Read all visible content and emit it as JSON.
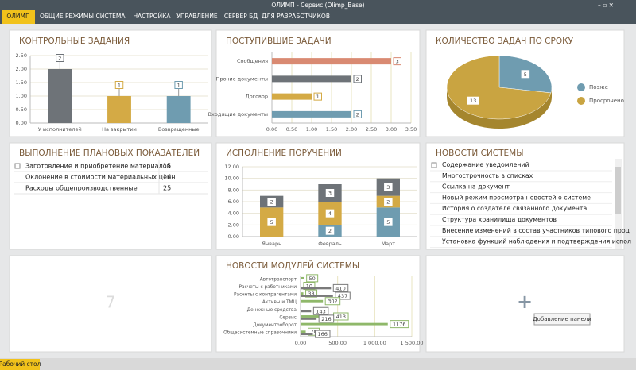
{
  "window": {
    "title": "ОЛИМП - Сервис (Olimp_Base)"
  },
  "menu": [
    "ОЛИМП",
    "ОБЩИЕ РЕЖИМЫ",
    "СИСТЕМА",
    "НАСТРОЙКА",
    "УПРАВЛЕНИЕ",
    "СЕРВЕР БД",
    "ДЛЯ РАЗРАБОТЧИКОВ"
  ],
  "status_bar": {
    "tab": "Рабочий стол"
  },
  "chart_data": [
    {
      "type": "bar",
      "title": "КОНТРОЛЬНЫЕ ЗАДАНИЯ",
      "categories": [
        "У исполнителей",
        "На закрытии",
        "Возвращенные"
      ],
      "values": [
        2,
        1,
        1
      ],
      "colors": [
        "#6e7378",
        "#d4aa45",
        "#6f9cb0"
      ],
      "ylim": [
        0,
        2.5
      ],
      "yticks": [
        {
          "value": 0,
          "label": "0.00"
        },
        {
          "value": 0.5,
          "label": "0.50"
        },
        {
          "value": 1,
          "label": "1.00"
        },
        {
          "value": 1.5,
          "label": "1.50"
        },
        {
          "value": 2,
          "label": "2.00"
        },
        {
          "value": 2.5,
          "label": "2.50"
        }
      ],
      "grid": true
    },
    {
      "type": "barh",
      "title": "ПОСТУПИВШИЕ ЗАДАЧИ",
      "categories": [
        "Сообщения",
        "Прочие документы",
        "Договор",
        "Входящие документы"
      ],
      "values": [
        3,
        2,
        1,
        2
      ],
      "colors": [
        "#d98a72",
        "#6e7378",
        "#d4aa45",
        "#6f9cb0"
      ],
      "xlim": [
        0,
        3.5
      ],
      "xticks": [
        {
          "value": 0,
          "label": "0.00"
        },
        {
          "value": 0.5,
          "label": "0.50"
        },
        {
          "value": 1,
          "label": "1.00"
        },
        {
          "value": 1.5,
          "label": "1.50"
        },
        {
          "value": 2,
          "label": "2.00"
        },
        {
          "value": 2.5,
          "label": "2.50"
        },
        {
          "value": 3,
          "label": "3.00"
        },
        {
          "value": 3.5,
          "label": "3.50"
        }
      ],
      "grid": true
    },
    {
      "type": "pie",
      "title": "КОЛИЧЕСТВО ЗАДАЧ ПО СРОКУ",
      "categories": [
        "Позже",
        "Просрочено"
      ],
      "values": [
        5,
        13
      ],
      "colors": [
        "#6f9cb0",
        "#c9a441"
      ],
      "legend": "right"
    },
    {
      "type": "stacked_bar",
      "title": "ИСПОЛНЕНИЕ ПОРУЧЕНИЙ",
      "categories": [
        "Январь",
        "Февраль",
        "Март"
      ],
      "series": [
        {
          "color": "#6f9cb0",
          "values": [
            0,
            2,
            5
          ]
        },
        {
          "color": "#d4aa45",
          "values": [
            5,
            4,
            2
          ]
        },
        {
          "color": "#6e7378",
          "values": [
            2,
            3,
            3
          ]
        }
      ],
      "ylim": [
        0,
        12
      ],
      "yticks": [
        {
          "value": 0,
          "label": "0.00"
        },
        {
          "value": 2,
          "label": "2.00"
        },
        {
          "value": 4,
          "label": "4.00"
        },
        {
          "value": 6,
          "label": "6.00"
        },
        {
          "value": 8,
          "label": "8.00"
        },
        {
          "value": 10,
          "label": "10.00"
        },
        {
          "value": 12,
          "label": "12.00"
        }
      ],
      "grid": true
    },
    {
      "type": "barh",
      "title": "НОВОСТИ МОДУЛЕЙ СИСТЕМЫ",
      "categories": [
        "Автотранспорт",
        "Расчеты с работниками",
        "Расчеты с контрагентами",
        "Активы и ТМЦ",
        "Денежные средства",
        "Сервис",
        "Документооборот",
        "Общесистемные справочники"
      ],
      "series": [
        {
          "color": "#8fb86a",
          "values": [
            50,
            10,
            38,
            302,
            null,
            413,
            1176,
            70
          ]
        },
        {
          "color": "#7a7a7a",
          "values": [
            null,
            410,
            437,
            null,
            143,
            216,
            null,
            166
          ]
        }
      ],
      "xlim": [
        0,
        1500
      ],
      "xticks": [
        {
          "value": 0,
          "label": "0.00"
        },
        {
          "value": 500,
          "label": "500.00"
        },
        {
          "value": 1000,
          "label": "1 000.00"
        },
        {
          "value": 1500,
          "label": "1 500.00"
        }
      ],
      "grid": true
    }
  ],
  "table": {
    "title": "ВЫПОЛНЕНИЕ ПЛАНОВЫХ ПОКАЗАТЕЛЕЙ",
    "rows": [
      [
        "Заготовление и приобретение материалов",
        15
      ],
      [
        "Оклонение в стоимости материальных ценн",
        16
      ],
      [
        "Расходы общепроизводственные",
        25
      ]
    ]
  },
  "news": {
    "title": "НОВОСТИ СИСТЕМЫ",
    "items": [
      "Содержание уведомлений",
      "Многострочность в списках",
      "Ссылка на документ",
      "Новый режим просмотра новостей о системе",
      "История о создателе связанного документа",
      "Структура хранилища документов",
      "Внесение изменений в состав участников типового проц",
      "Установка функций наблюдения и подтверждения испол"
    ]
  },
  "empty_panel": {
    "number": 7
  },
  "add_panel": {
    "tooltip": "Добавление панели"
  }
}
